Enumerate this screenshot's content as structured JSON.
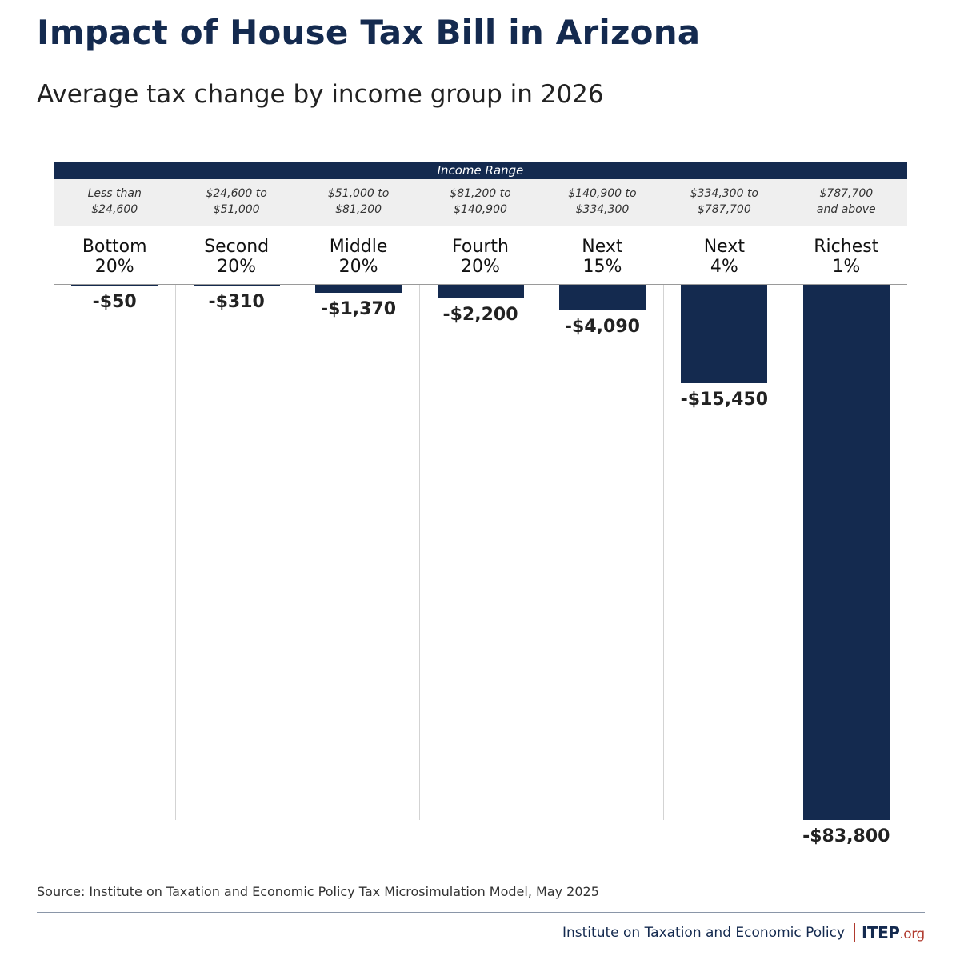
{
  "title": "Impact of House Tax Bill in Arizona",
  "subtitle": "Average tax change by income group in 2026",
  "range_header": "Income Range",
  "colors": {
    "bar": "#142a4f",
    "header_band": "#142a4f",
    "range_band": "#efefef",
    "logo_accent": "#b03a2e"
  },
  "chart_data": {
    "type": "bar",
    "orientation": "vertical-down",
    "title": "Impact of House Tax Bill in Arizona",
    "subtitle": "Average tax change by income group in 2026",
    "categories": [
      "Bottom\n20%",
      "Second\n20%",
      "Middle\n20%",
      "Fourth\n20%",
      "Next\n15%",
      "Next\n4%",
      "Richest\n1%"
    ],
    "income_ranges": [
      "Less than\n$24,600",
      "$24,600 to\n$51,000",
      "$51,000 to\n$81,200",
      "$81,200 to\n$140,900",
      "$140,900 to\n$334,300",
      "$334,300 to\n$787,700",
      "$787,700\nand above"
    ],
    "values": [
      -50,
      -310,
      -1370,
      -2200,
      -4090,
      -15450,
      -83800
    ],
    "value_labels": [
      "-$50",
      "-$310",
      "-$1,370",
      "-$2,200",
      "-$4,090",
      "-$15,450",
      "-$83,800"
    ],
    "ylim": [
      -83800,
      0
    ],
    "grid": false,
    "legend": "none"
  },
  "footer": {
    "source": "Source: Institute on Taxation and Economic Policy Tax Microsimulation Model, May 2025",
    "org": "Institute on Taxation and Economic Policy",
    "logo_main": "ITEP",
    "logo_suffix": ".org"
  }
}
